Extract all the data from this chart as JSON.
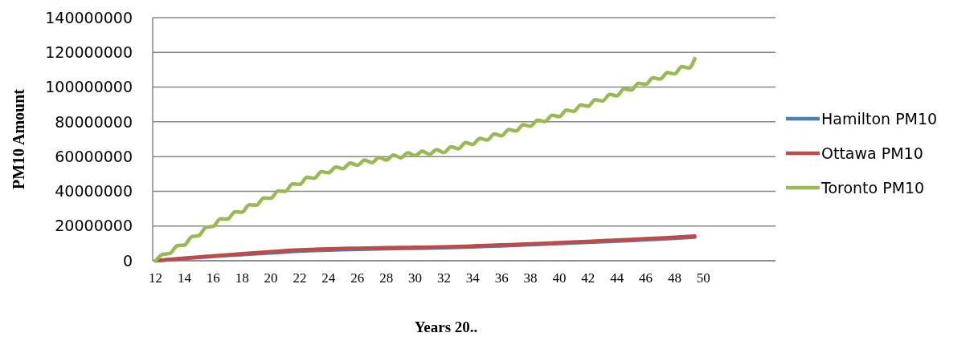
{
  "chart_data": {
    "type": "line",
    "xlabel": "Years 20..",
    "ylabel": "PM10 Amount",
    "xlim": [
      11.8,
      55
    ],
    "xticks": [
      12,
      14,
      16,
      18,
      20,
      22,
      24,
      26,
      28,
      30,
      32,
      34,
      36,
      38,
      40,
      42,
      44,
      46,
      48,
      50
    ],
    "ylim": [
      0,
      140000000
    ],
    "yticks": [
      0,
      20000000,
      40000000,
      60000000,
      80000000,
      100000000,
      120000000,
      140000000
    ],
    "grid": "y",
    "legend": "right",
    "marker": "none",
    "line_style": "solid",
    "series": [
      {
        "name": "Hamilton PM10",
        "color": "#4a7ebb",
        "x": [
          12,
          14,
          16,
          18,
          20,
          22,
          24,
          26,
          28,
          30,
          32,
          34,
          36,
          38,
          40,
          42,
          44,
          46,
          48,
          49.4
        ],
        "values": [
          0,
          1300000,
          2500000,
          3500000,
          4500000,
          5500000,
          6100000,
          6600000,
          6900000,
          7200000,
          7500000,
          8000000,
          8600000,
          9200000,
          9900000,
          10600000,
          11300000,
          12100000,
          12900000,
          13600000
        ]
      },
      {
        "name": "Ottawa PM10",
        "color": "#be4b48",
        "x": [
          12,
          14,
          16,
          18,
          20,
          22,
          24,
          26,
          28,
          30,
          32,
          34,
          36,
          38,
          40,
          42,
          44,
          46,
          48,
          49.4
        ],
        "values": [
          0,
          1500000,
          2800000,
          4000000,
          5200000,
          6200000,
          6800000,
          7200000,
          7500000,
          7700000,
          8000000,
          8500000,
          9100000,
          9700000,
          10400000,
          11100000,
          11900000,
          12700000,
          13500000,
          14200000
        ]
      },
      {
        "name": "Toronto PM10",
        "color": "#98b954",
        "x": [
          12,
          12.5,
          13,
          13.5,
          14,
          14.5,
          15,
          15.5,
          16,
          16.5,
          17,
          17.5,
          18,
          18.5,
          19,
          19.5,
          20,
          20.5,
          21,
          21.5,
          22,
          22.5,
          23,
          23.5,
          24,
          24.5,
          25,
          25.5,
          26,
          26.5,
          27,
          27.5,
          28,
          28.5,
          29,
          29.5,
          30,
          30.5,
          31,
          31.5,
          32,
          32.5,
          33,
          33.5,
          34,
          34.5,
          35,
          35.5,
          36,
          36.5,
          37,
          37.5,
          38,
          38.5,
          39,
          39.5,
          40,
          40.5,
          41,
          41.5,
          42,
          42.5,
          43,
          43.5,
          44,
          44.5,
          45,
          45.5,
          46,
          46.5,
          47,
          47.5,
          48,
          48.5,
          49,
          49.4
        ],
        "values": [
          0,
          3700000,
          4200000,
          8700000,
          9000000,
          13800000,
          14500000,
          19300000,
          19800000,
          24100000,
          24000000,
          28200000,
          28000000,
          32200000,
          32000000,
          36200000,
          36000000,
          40200000,
          40000000,
          44200000,
          44000000,
          48000000,
          47500000,
          51300000,
          50700000,
          54000000,
          53000000,
          56200000,
          55000000,
          58000000,
          56500000,
          59500000,
          58000000,
          60900000,
          59300000,
          62100000,
          60500000,
          63100000,
          61300000,
          64000000,
          62300000,
          65600000,
          64500000,
          68000000,
          67000000,
          70500000,
          69500000,
          73000000,
          72000000,
          75500000,
          74700000,
          78300000,
          77500000,
          81000000,
          80200000,
          83800000,
          83000000,
          86700000,
          86000000,
          89700000,
          89000000,
          92700000,
          92000000,
          95800000,
          95000000,
          99000000,
          98300000,
          102200000,
          101600000,
          105300000,
          104600000,
          108300000,
          107600000,
          111800000,
          111000000,
          116400000
        ]
      }
    ]
  }
}
